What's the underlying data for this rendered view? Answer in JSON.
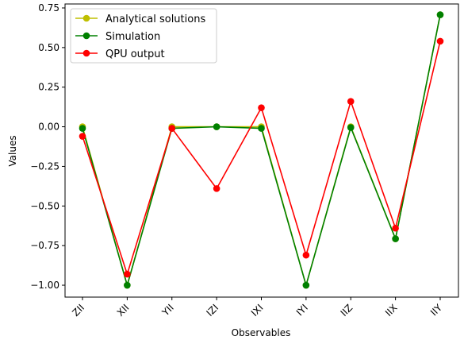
{
  "chart_data": {
    "type": "line",
    "xlabel": "Observables",
    "ylabel": "Values",
    "categories": [
      "ZII",
      "XII",
      "YII",
      "IZI",
      "IXI",
      "IYI",
      "IIZ",
      "IIX",
      "IIY"
    ],
    "ylim": [
      -1.075,
      0.775
    ],
    "yticks": [
      -1.0,
      -0.75,
      -0.5,
      -0.25,
      0.0,
      0.25,
      0.5,
      0.75
    ],
    "ytick_labels": [
      "−1.00",
      "−0.75",
      "−0.50",
      "−0.25",
      "0.00",
      "0.25",
      "0.50",
      "0.75"
    ],
    "grid": false,
    "legend_position": "top-left",
    "series": [
      {
        "name": "Analytical solutions",
        "color": "#bfbf00",
        "values": [
          0.0,
          -1.0,
          0.0,
          0.0,
          0.0,
          -1.0,
          0.0,
          -0.707,
          0.707
        ]
      },
      {
        "name": "Simulation",
        "color": "#008000",
        "values": [
          -0.01,
          -1.0,
          -0.01,
          0.0,
          -0.01,
          -1.0,
          -0.005,
          -0.707,
          0.707
        ]
      },
      {
        "name": "QPU output",
        "color": "#ff0000",
        "values": [
          -0.06,
          -0.93,
          -0.01,
          -0.39,
          0.12,
          -0.81,
          0.16,
          -0.64,
          0.54
        ]
      }
    ]
  }
}
